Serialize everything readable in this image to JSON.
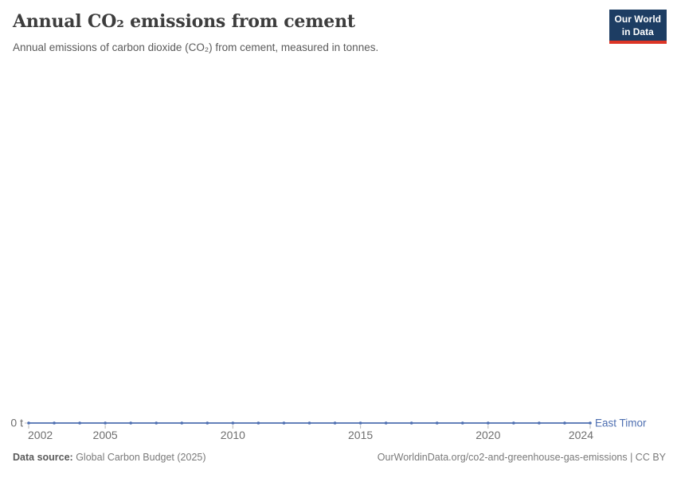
{
  "header": {
    "title": "Annual CO₂ emissions from cement",
    "subtitle": "Annual emissions of carbon dioxide (CO₂) from cement, measured in tonnes.",
    "logo": {
      "line1": "Our World",
      "line2": "in Data"
    }
  },
  "chart_data": {
    "type": "line",
    "title": "Annual CO₂ emissions from cement",
    "xlabel": "",
    "ylabel": "tonnes",
    "xlim": [
      2002,
      2024
    ],
    "ylim": [
      0,
      0
    ],
    "grid": false,
    "legend_position": "right-of-line-end",
    "x_ticks": [
      2002,
      2005,
      2010,
      2015,
      2020,
      2024
    ],
    "y_ticks": [
      {
        "value": 0,
        "label": "0 t"
      }
    ],
    "series": [
      {
        "name": "East Timor",
        "color": "#4e6fb1",
        "x": [
          2002,
          2003,
          2004,
          2005,
          2006,
          2007,
          2008,
          2009,
          2010,
          2011,
          2012,
          2013,
          2014,
          2015,
          2016,
          2017,
          2018,
          2019,
          2020,
          2021,
          2022,
          2023,
          2024
        ],
        "values": [
          0,
          0,
          0,
          0,
          0,
          0,
          0,
          0,
          0,
          0,
          0,
          0,
          0,
          0,
          0,
          0,
          0,
          0,
          0,
          0,
          0,
          0,
          0
        ]
      }
    ],
    "colors": {
      "tick_label": "#6e6e6e",
      "tick_mark": "#c2c2c2",
      "axis_label": "#6e6e6e"
    }
  },
  "footer": {
    "source_label": "Data source:",
    "source_value": " Global Carbon Budget (2025)",
    "link": "OurWorldinData.org/co2-and-greenhouse-gas-emissions | CC BY"
  }
}
